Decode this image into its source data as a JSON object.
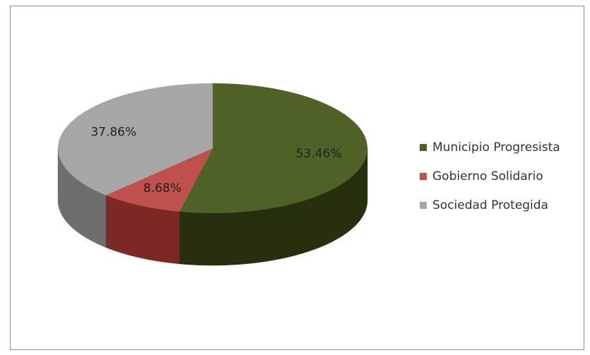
{
  "chart_data": {
    "type": "pie",
    "style": "3d",
    "title": "",
    "series": [
      {
        "name": "Municipio Progresista",
        "value": 53.46,
        "label": "53.46%",
        "color": "#4f6228",
        "side_color": "#26300f"
      },
      {
        "name": "Gobierno Solidario",
        "value": 8.68,
        "label": "8.68%",
        "color": "#c0504d",
        "side_color": "#7c2926"
      },
      {
        "name": "Sociedad Protegida",
        "value": 37.86,
        "label": "37.86%",
        "color": "#a6a6a6",
        "side_color": "#6e6e6e"
      }
    ],
    "legend_position": "right",
    "start_angle": "12 o'clock, clockwise"
  }
}
